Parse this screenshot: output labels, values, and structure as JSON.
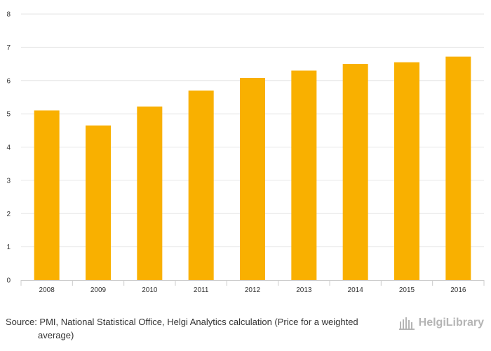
{
  "chart_data": {
    "type": "bar",
    "categories": [
      "2008",
      "2009",
      "2010",
      "2011",
      "2012",
      "2013",
      "2014",
      "2015",
      "2016"
    ],
    "values": [
      5.1,
      4.65,
      5.22,
      5.7,
      6.08,
      6.3,
      6.5,
      6.55,
      6.72
    ],
    "title": "",
    "xlabel": "",
    "ylabel": "",
    "ylim": [
      0,
      8
    ],
    "yticks": [
      0,
      1,
      2,
      3,
      4,
      5,
      6,
      7,
      8
    ],
    "grid": true,
    "bar_color": "#F9B000"
  },
  "footer": {
    "source_text": "Source: PMI, National Statistical Office, Helgi Analytics calculation (Price for a weighted average)"
  },
  "logo": {
    "text": "HelgiLibrary"
  }
}
